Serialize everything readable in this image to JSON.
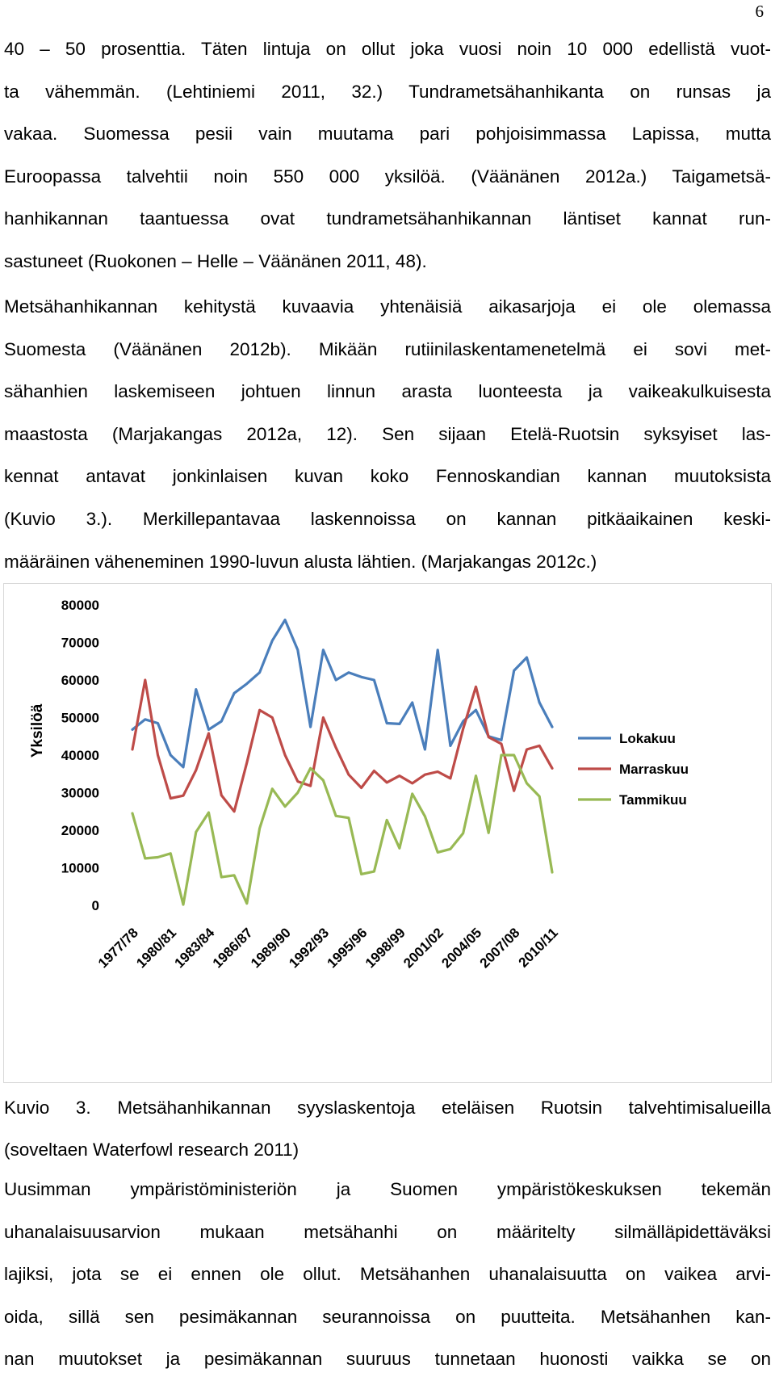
{
  "page": {
    "number": "6"
  },
  "paragraphs": [
    {
      "lines": [
        "40 – 50 prosenttia. Täten lintuja on ollut joka vuosi noin 10 000 edellistä vuot-",
        "ta vähemmän. (Lehtiniemi 2011, 32.) Tundrametsähanhikanta on runsas ja",
        "vakaa. Suomessa pesii vain muutama pari pohjoisimmassa Lapissa, mutta",
        "Euroopassa talvehtii noin 550 000 yksilöä. (Väänänen 2012a.) Taigametsä-",
        "hanhikannan taantuessa ovat tundrametsähanhikannan läntiset kannat run-",
        "sastuneet (Ruokonen – Helle – Väänänen 2011, 48)."
      ]
    },
    {
      "lines": [
        "Metsähanhikannan kehitystä kuvaavia yhtenäisiä aikasarjoja ei ole olemassa",
        "Suomesta (Väänänen 2012b). Mikään rutiinilaskentamenetelmä ei sovi met-",
        "sähanhien laskemiseen johtuen linnun arasta luonteesta ja vaikeakulkuisesta",
        "maastosta (Marjakangas 2012a, 12). Sen sijaan Etelä-Ruotsin syksyiset las-",
        "kennat antavat jonkinlaisen kuvan koko Fennoskandian kannan muutoksista",
        "(Kuvio 3.). Merkillepantavaa laskennoissa on kannan pitkäaikainen keski-",
        "määräinen väheneminen 1990-luvun alusta lähtien. (Marjakangas 2012c.)"
      ]
    },
    {
      "lines": [
        "Uusimman ympäristöministeriön ja Suomen ympäristökeskuksen tekemän",
        "uhanalaisuusarvion mukaan metsähanhi on määritelty silmälläpidettäväksi",
        "lajiksi, jota se ei ennen ole ollut. Metsähanhen uhanalaisuutta on vaikea arvi-",
        "oida, sillä sen pesimäkannan seurannoissa on puutteita. Metsähanhen kan-",
        "nan muutokset ja pesimäkannan suuruus tunnetaan huonosti vaikka se on"
      ]
    }
  ],
  "caption": {
    "lines": [
      "Kuvio 3. Metsähanhikannan syyslaskentoja eteläisen Ruotsin talvehtimisalueilla",
      "(soveltaen Waterfowl research 2011)"
    ]
  },
  "chart_data": {
    "type": "line",
    "title": "",
    "xlabel": "",
    "ylabel": "Yksilöä",
    "ylim": [
      0,
      80000
    ],
    "yticks": [
      0,
      10000,
      20000,
      30000,
      40000,
      50000,
      60000,
      70000,
      80000
    ],
    "grid": false,
    "legend_position": "right",
    "x": [
      "1977/78",
      "1978/79",
      "1979/80",
      "1980/81",
      "1981/82",
      "1982/83",
      "1983/84",
      "1984/85",
      "1985/86",
      "1986/87",
      "1987/88",
      "1988/89",
      "1989/90",
      "1990/91",
      "1991/92",
      "1992/93",
      "1993/94",
      "1994/95",
      "1995/96",
      "1996/97",
      "1997/98",
      "1998/99",
      "1999/00",
      "2000/01",
      "2001/02",
      "2002/03",
      "2003/04",
      "2004/05",
      "2005/06",
      "2006/07",
      "2007/08",
      "2008/09",
      "2009/10",
      "2010/11"
    ],
    "x_tick_labels": [
      "1977/78",
      "1980/81",
      "1983/84",
      "1986/87",
      "1989/90",
      "1992/93",
      "1995/96",
      "1998/99",
      "2001/02",
      "2004/05",
      "2007/08",
      "2010/11"
    ],
    "series": [
      {
        "name": "Lokakuu",
        "color": "#4a7ebb",
        "values": [
          46800,
          49500,
          48500,
          40000,
          36800,
          57500,
          46800,
          49000,
          56500,
          59000,
          62000,
          70500,
          76000,
          68000,
          47500,
          68000,
          60000,
          62000,
          60800,
          60000,
          48500,
          48300,
          54000,
          41500,
          68000,
          42500,
          49000,
          52000,
          45000,
          44000,
          62500,
          66000,
          54000,
          47500
        ]
      },
      {
        "name": "Marraskuu",
        "color": "#be4b48",
        "values": [
          41500,
          60000,
          40000,
          28500,
          29200,
          36000,
          45800,
          29300,
          25000,
          38000,
          52000,
          50000,
          40000,
          33000,
          31800,
          50000,
          42000,
          34800,
          31300,
          35800,
          32700,
          34500,
          32500,
          34800,
          35600,
          33800,
          47000,
          58200,
          44800,
          43000,
          30500,
          41500,
          42500,
          36500
        ]
      },
      {
        "name": "Tammikuu",
        "color": "#98b954",
        "values": [
          24500,
          12500,
          12800,
          13800,
          200,
          19500,
          24700,
          7500,
          8000,
          500,
          20500,
          31000,
          26300,
          30000,
          36500,
          33300,
          23800,
          23300,
          8300,
          9000,
          22700,
          15200,
          29700,
          23700,
          14100,
          15000,
          19200,
          34500,
          19300,
          40000,
          40000,
          32500,
          29000,
          8800
        ]
      }
    ]
  }
}
